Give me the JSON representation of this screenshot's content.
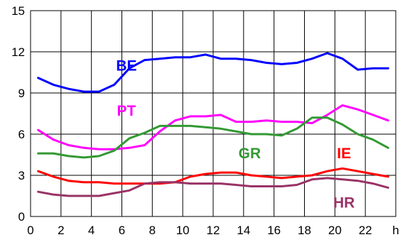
{
  "chart_data": {
    "type": "line",
    "xlabel": "",
    "ylabel": "",
    "xlim": [
      0,
      24
    ],
    "ylim": [
      0,
      15
    ],
    "grid": true,
    "x_ticks": [
      {
        "value": 0,
        "label": "0"
      },
      {
        "value": 2,
        "label": "2"
      },
      {
        "value": 4,
        "label": "4"
      },
      {
        "value": 6,
        "label": "6"
      },
      {
        "value": 8,
        "label": "8"
      },
      {
        "value": 10,
        "label": "10"
      },
      {
        "value": 12,
        "label": "12"
      },
      {
        "value": 14,
        "label": "14"
      },
      {
        "value": 16,
        "label": "16"
      },
      {
        "value": 18,
        "label": "18"
      },
      {
        "value": 20,
        "label": "20"
      },
      {
        "value": 22,
        "label": "22"
      },
      {
        "value": 24,
        "label": "h"
      }
    ],
    "y_ticks": [
      {
        "value": 0,
        "label": "0"
      },
      {
        "value": 3,
        "label": "3"
      },
      {
        "value": 6,
        "label": "6"
      },
      {
        "value": 9,
        "label": "9"
      },
      {
        "value": 12,
        "label": "12"
      },
      {
        "value": 15,
        "label": "15"
      }
    ],
    "x": [
      0.5,
      1.5,
      2.5,
      3.5,
      4.5,
      5.5,
      6.5,
      7.5,
      8.5,
      9.5,
      10.5,
      11.5,
      12.5,
      13.5,
      14.5,
      15.5,
      16.5,
      17.5,
      18.5,
      19.5,
      20.5,
      21.5,
      22.5,
      23.5
    ],
    "series": [
      {
        "name": "BE",
        "color": "#0000ff",
        "label_at": [
          6.3,
          11.0
        ],
        "values": [
          10.1,
          9.6,
          9.3,
          9.1,
          9.1,
          9.6,
          10.8,
          11.4,
          11.5,
          11.6,
          11.6,
          11.8,
          11.5,
          11.5,
          11.4,
          11.2,
          11.1,
          11.2,
          11.5,
          11.9,
          11.5,
          10.7,
          10.8,
          10.8
        ]
      },
      {
        "name": "PT",
        "color": "#ff00ff",
        "label_at": [
          6.3,
          7.7
        ],
        "values": [
          6.3,
          5.6,
          5.2,
          5.0,
          4.9,
          4.9,
          5.0,
          5.2,
          6.2,
          7.0,
          7.3,
          7.3,
          7.4,
          6.9,
          6.9,
          7.0,
          6.9,
          6.9,
          6.8,
          7.4,
          8.1,
          7.8,
          7.4,
          7.0
        ]
      },
      {
        "name": "GR",
        "color": "#339933",
        "label_at": [
          14.4,
          4.6
        ],
        "values": [
          4.6,
          4.6,
          4.4,
          4.3,
          4.4,
          4.8,
          5.7,
          6.1,
          6.6,
          6.6,
          6.6,
          6.5,
          6.4,
          6.2,
          6.0,
          6.0,
          5.9,
          6.4,
          7.2,
          7.2,
          6.7,
          6.0,
          5.6,
          5.0
        ]
      },
      {
        "name": "IE",
        "color": "#ff0000",
        "label_at": [
          20.6,
          4.6
        ],
        "values": [
          3.3,
          2.9,
          2.6,
          2.5,
          2.5,
          2.4,
          2.4,
          2.4,
          2.4,
          2.5,
          2.9,
          3.1,
          3.2,
          3.2,
          3.0,
          2.9,
          2.8,
          2.9,
          3.0,
          3.3,
          3.5,
          3.3,
          3.1,
          2.9
        ]
      },
      {
        "name": "HR",
        "color": "#993366",
        "label_at": [
          20.6,
          1.0
        ],
        "values": [
          1.8,
          1.6,
          1.5,
          1.5,
          1.5,
          1.7,
          1.9,
          2.4,
          2.5,
          2.5,
          2.4,
          2.4,
          2.4,
          2.3,
          2.2,
          2.2,
          2.2,
          2.3,
          2.7,
          2.8,
          2.7,
          2.6,
          2.4,
          2.1
        ]
      }
    ]
  }
}
